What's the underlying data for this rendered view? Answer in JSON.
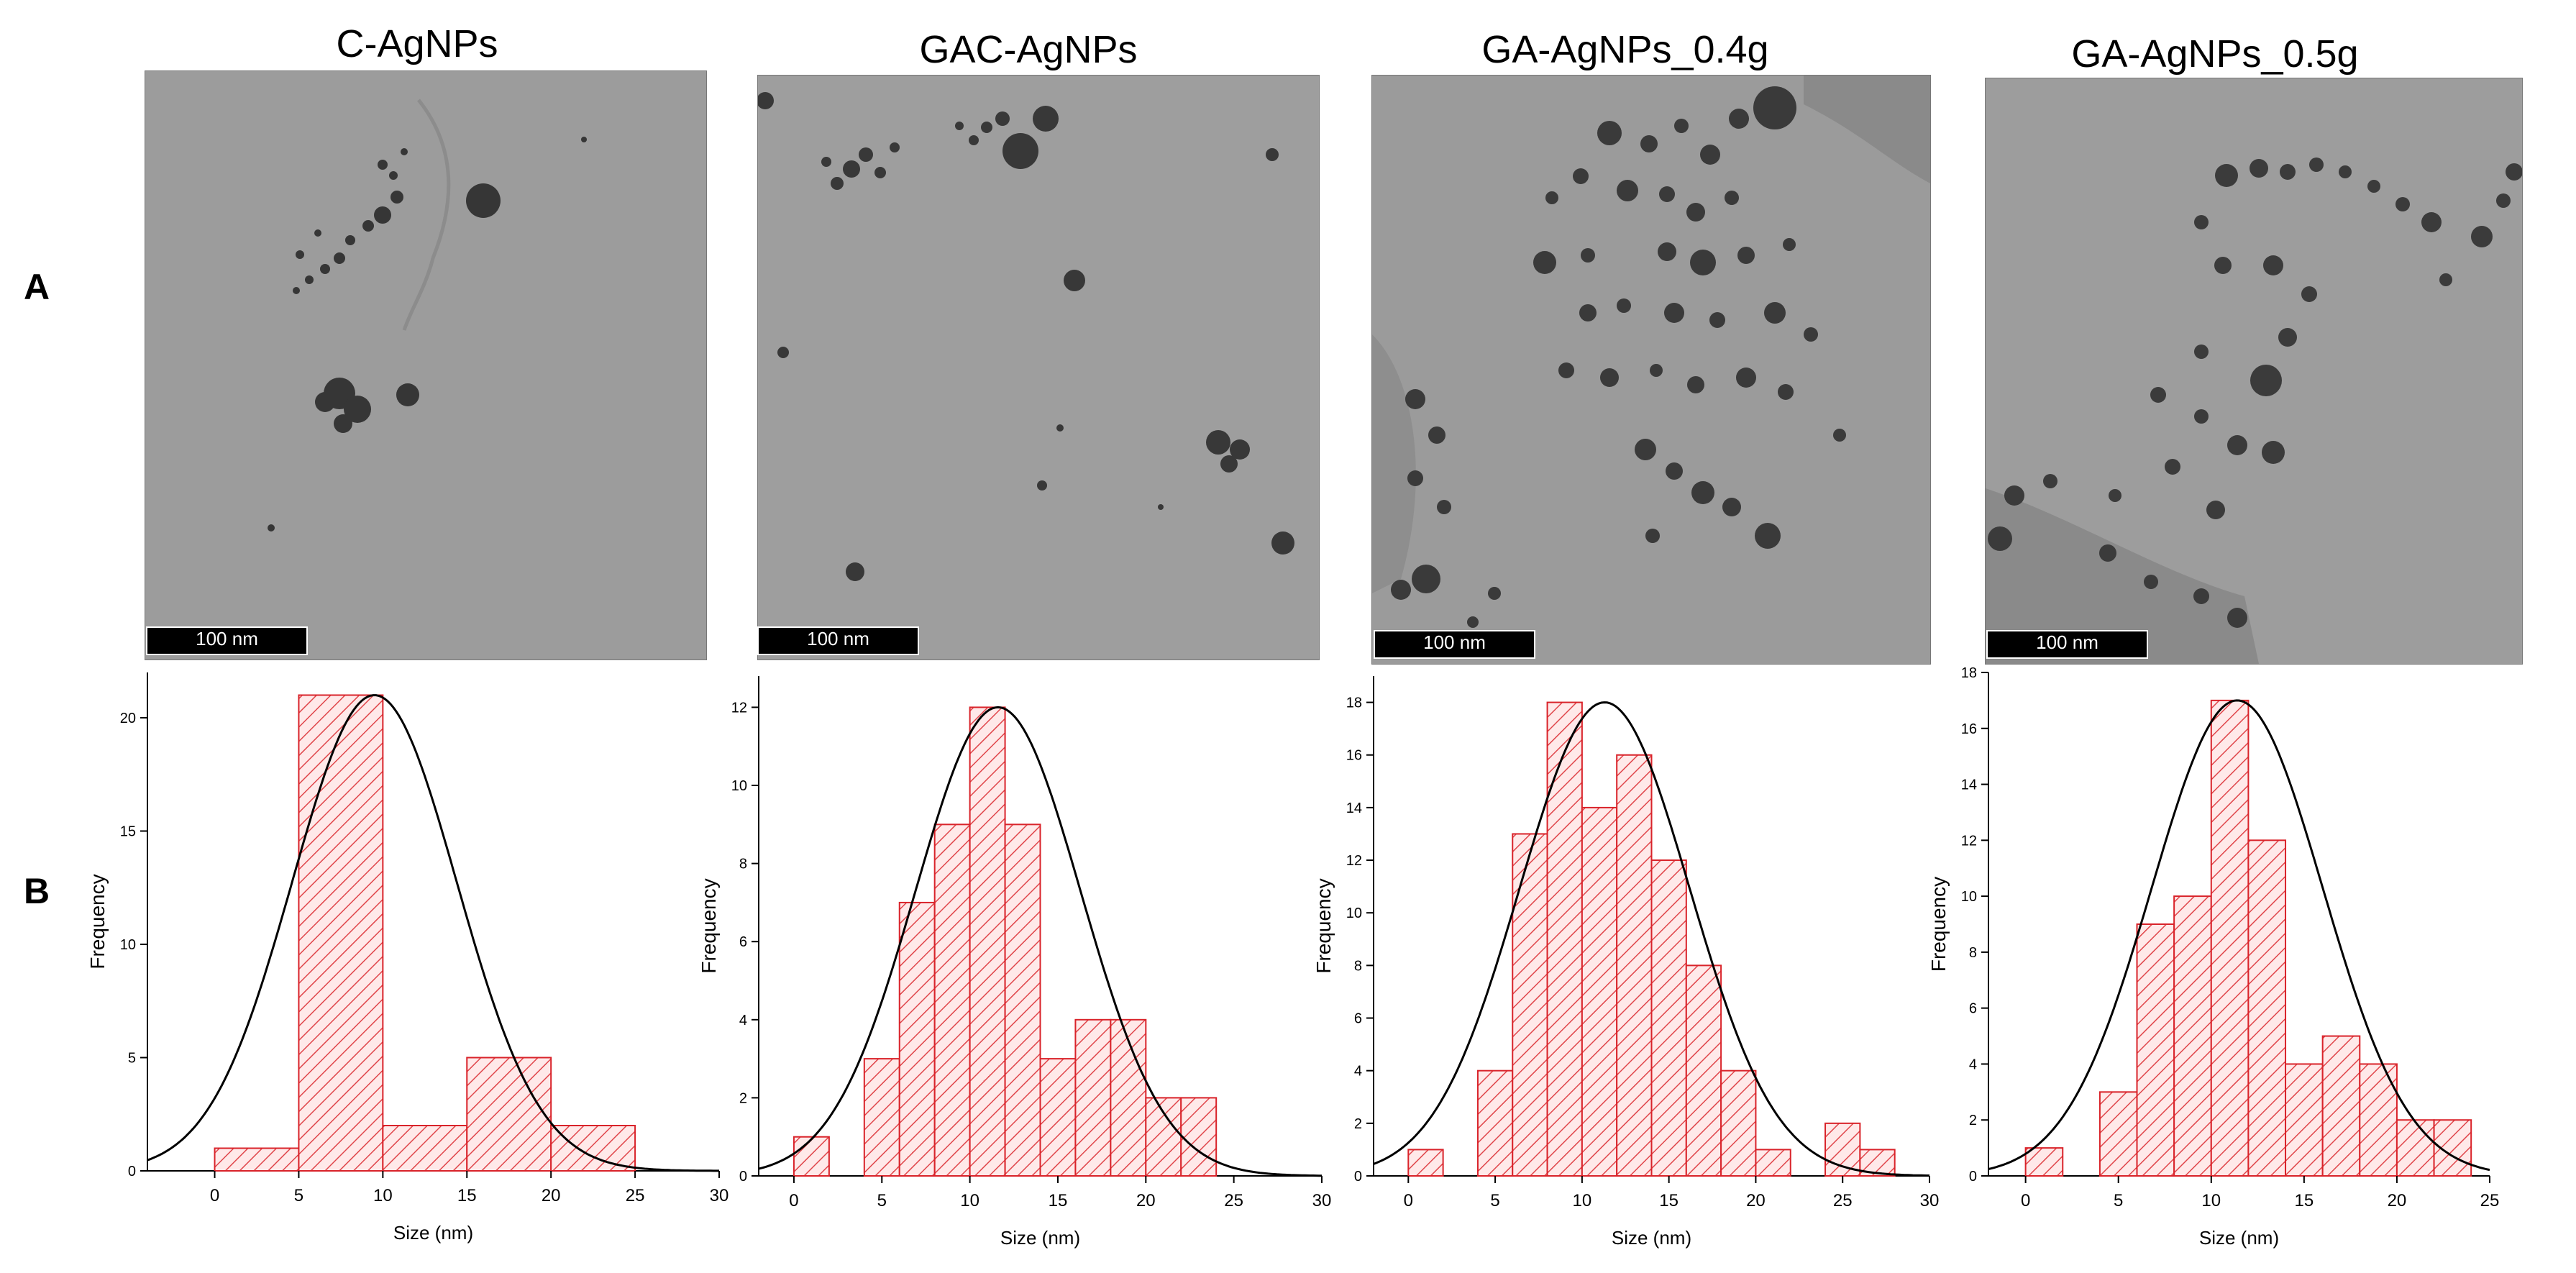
{
  "figure": {
    "row_labels": [
      "A",
      "B"
    ],
    "scale_bar_label": "100 nm"
  },
  "samples": [
    {
      "id": "c",
      "title": "C-AgNPs"
    },
    {
      "id": "gac",
      "title": "GAC-AgNPs"
    },
    {
      "id": "ga04",
      "title": "GA-AgNPs_0.4g"
    },
    {
      "id": "ga05",
      "title": "GA-AgNPs_0.5g"
    }
  ],
  "colors": {
    "bar_edge": "#d9232a",
    "bar_fill": "#ffe9e9",
    "hatch": "#e0454a",
    "fit_curve": "#000000",
    "tem_background": "#9a9a9a",
    "particle": "#3a3a3a"
  },
  "chart_data": [
    {
      "type": "bar",
      "xlabel": "Size (nm)",
      "ylabel": "Frequency",
      "xlim": [
        -4,
        30
      ],
      "ylim": [
        0,
        22
      ],
      "xticks": [
        0,
        5,
        10,
        15,
        20,
        25,
        30
      ],
      "yticks": [
        0,
        5,
        10,
        15,
        20
      ],
      "bins": [
        [
          0,
          5
        ],
        [
          5,
          10
        ],
        [
          10,
          15
        ],
        [
          15,
          20
        ],
        [
          20,
          25
        ]
      ],
      "values": [
        1,
        21,
        2,
        5,
        2
      ],
      "fit": {
        "type": "gaussian",
        "mean": 9.5,
        "sd": 4.9,
        "peak": 21
      }
    },
    {
      "type": "bar",
      "xlabel": "Size (nm)",
      "ylabel": "Frequency",
      "xlim": [
        -2,
        30
      ],
      "ylim": [
        0,
        12.8
      ],
      "xticks": [
        0,
        5,
        10,
        15,
        20,
        25,
        30
      ],
      "yticks": [
        0,
        2,
        4,
        6,
        8,
        10,
        12
      ],
      "bins": [
        [
          0,
          2
        ],
        [
          2,
          4
        ],
        [
          4,
          6
        ],
        [
          6,
          8
        ],
        [
          8,
          10
        ],
        [
          10,
          12
        ],
        [
          12,
          14
        ],
        [
          14,
          16
        ],
        [
          16,
          18
        ],
        [
          18,
          20
        ],
        [
          20,
          22
        ],
        [
          22,
          24
        ]
      ],
      "values": [
        1,
        0,
        3,
        7,
        9,
        12,
        9,
        3,
        4,
        4,
        2,
        2
      ],
      "fit": {
        "type": "gaussian",
        "mean": 11.6,
        "sd": 4.7,
        "peak": 12
      }
    },
    {
      "type": "bar",
      "xlabel": "Size (nm)",
      "ylabel": "Frequency",
      "xlim": [
        -2,
        30
      ],
      "ylim": [
        0,
        19
      ],
      "xticks": [
        0,
        5,
        10,
        15,
        20,
        25,
        30
      ],
      "yticks": [
        0,
        2,
        4,
        6,
        8,
        10,
        12,
        14,
        16,
        18
      ],
      "bins": [
        [
          0,
          2
        ],
        [
          2,
          4
        ],
        [
          4,
          6
        ],
        [
          6,
          8
        ],
        [
          8,
          10
        ],
        [
          10,
          12
        ],
        [
          12,
          14
        ],
        [
          14,
          16
        ],
        [
          16,
          18
        ],
        [
          18,
          20
        ],
        [
          20,
          22
        ],
        [
          22,
          24
        ],
        [
          24,
          26
        ],
        [
          26,
          28
        ]
      ],
      "values": [
        1,
        0,
        4,
        13,
        18,
        14,
        16,
        12,
        8,
        4,
        1,
        0,
        2,
        1
      ],
      "fit": {
        "type": "gaussian",
        "mean": 11.3,
        "sd": 4.9,
        "peak": 18
      }
    },
    {
      "type": "bar",
      "xlabel": "Size (nm)",
      "ylabel": "Frequency",
      "xlim": [
        -2,
        25
      ],
      "ylim": [
        0,
        18
      ],
      "xticks": [
        0,
        5,
        10,
        15,
        20,
        25
      ],
      "yticks": [
        0,
        2,
        4,
        6,
        8,
        10,
        12,
        14,
        16,
        18
      ],
      "bins": [
        [
          0,
          2
        ],
        [
          2,
          4
        ],
        [
          4,
          6
        ],
        [
          6,
          8
        ],
        [
          8,
          10
        ],
        [
          10,
          12
        ],
        [
          12,
          14
        ],
        [
          14,
          16
        ],
        [
          16,
          18
        ],
        [
          18,
          20
        ],
        [
          20,
          22
        ],
        [
          22,
          24
        ]
      ],
      "values": [
        1,
        0,
        3,
        9,
        10,
        17,
        12,
        4,
        5,
        4,
        2,
        2
      ],
      "fit": {
        "type": "gaussian",
        "mean": 11.4,
        "sd": 4.6,
        "peak": 17
      }
    }
  ]
}
